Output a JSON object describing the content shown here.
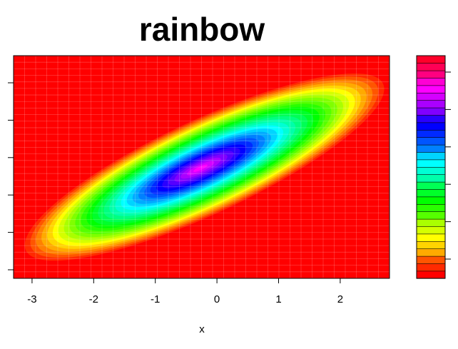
{
  "chart_data": {
    "type": "heatmap",
    "subtype": "filled-contour",
    "title": "rainbow",
    "xlabel": "x",
    "ylabel": "",
    "xlim": [
      -3.3,
      2.8
    ],
    "ylim": [
      0,
      1
    ],
    "x_ticks": [
      "-3",
      "-2",
      "-1",
      "0",
      "1",
      "2"
    ],
    "x_tick_values": [
      -3,
      -2,
      -1,
      0,
      1,
      2
    ],
    "y_ticks_count": 6,
    "colorbar_levels": 30,
    "palette": "rainbow",
    "colors": [
      "#ff0000",
      "#ff2a00",
      "#ff5500",
      "#ff8000",
      "#ffaa00",
      "#ffd400",
      "#ffff00",
      "#d4ff00",
      "#aaff00",
      "#80ff00",
      "#55ff00",
      "#2aff00",
      "#00ff00",
      "#00ff2a",
      "#00ff55",
      "#00ff80",
      "#00ffaa",
      "#00ffd4",
      "#00ffff",
      "#00d4ff",
      "#00aaff",
      "#0080ff",
      "#0055ff",
      "#002aff",
      "#0000ff",
      "#2a00ff",
      "#5500ff",
      "#8000ff",
      "#aa00ff",
      "#d400ff",
      "#ff00ff",
      "#ff00d4",
      "#ff00aa",
      "#ff0080",
      "#ff0055",
      "#ff002a"
    ],
    "colorbar_ticks_count": 6,
    "grid": true,
    "density_peak": {
      "x": -0.2,
      "y": 0.5
    }
  }
}
